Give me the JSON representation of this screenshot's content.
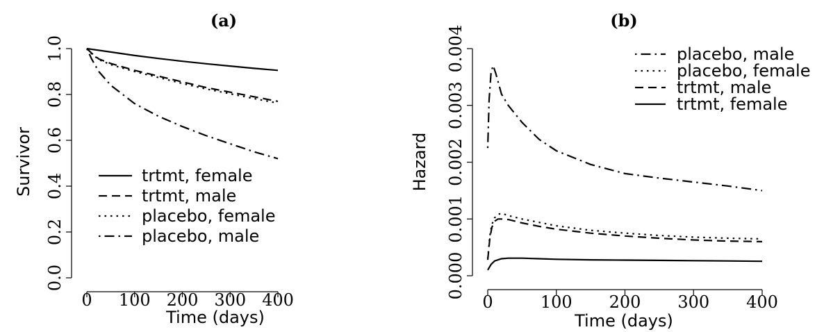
{
  "chart_data": [
    {
      "type": "line",
      "title": "(a)",
      "xlabel": "Time (days)",
      "ylabel": "Survivor",
      "xlim": [
        0,
        400
      ],
      "ylim": [
        0,
        1
      ],
      "xticks": [
        0,
        100,
        200,
        300,
        400
      ],
      "yticks": [
        0.0,
        0.2,
        0.4,
        0.6,
        0.8,
        1.0
      ],
      "xtick_labels": [
        "0",
        "100",
        "200",
        "300",
        "400"
      ],
      "ytick_labels": [
        "0.0",
        "0.2",
        "0.4",
        "0.6",
        "0.8",
        "1.0"
      ],
      "legend_position": "bottom-left",
      "grid": false,
      "series": [
        {
          "name": "trtmt, female",
          "style": "solid",
          "x": [
            0,
            50,
            100,
            150,
            200,
            250,
            300,
            350,
            400
          ],
          "y": [
            1.0,
            0.985,
            0.97,
            0.957,
            0.945,
            0.934,
            0.924,
            0.914,
            0.905
          ]
        },
        {
          "name": "trtmt, male",
          "style": "dashed",
          "x": [
            0,
            10,
            25,
            50,
            100,
            150,
            200,
            250,
            300,
            350,
            400
          ],
          "y": [
            1.0,
            0.98,
            0.955,
            0.935,
            0.905,
            0.88,
            0.855,
            0.83,
            0.81,
            0.79,
            0.77
          ]
        },
        {
          "name": "placebo, female",
          "style": "dotted",
          "x": [
            0,
            10,
            25,
            50,
            100,
            150,
            200,
            250,
            300,
            350,
            400
          ],
          "y": [
            1.0,
            0.978,
            0.952,
            0.93,
            0.9,
            0.874,
            0.848,
            0.824,
            0.803,
            0.782,
            0.762
          ]
        },
        {
          "name": "placebo, male",
          "style": "dashdot",
          "x": [
            0,
            10,
            25,
            50,
            100,
            150,
            200,
            250,
            300,
            350,
            400
          ],
          "y": [
            1.0,
            0.955,
            0.9,
            0.84,
            0.76,
            0.705,
            0.66,
            0.62,
            0.585,
            0.55,
            0.52
          ]
        }
      ]
    },
    {
      "type": "line",
      "title": "(b)",
      "xlabel": "Time (days)",
      "ylabel": "Hazard",
      "xlim": [
        0,
        400
      ],
      "ylim": [
        0,
        0.004
      ],
      "xticks": [
        0,
        100,
        200,
        300,
        400
      ],
      "yticks": [
        0.0,
        0.001,
        0.002,
        0.003,
        0.004
      ],
      "xtick_labels": [
        "0",
        "100",
        "200",
        "300",
        "400"
      ],
      "ytick_labels": [
        "0.000",
        "0.001",
        "0.002",
        "0.003",
        "0.004"
      ],
      "legend_position": "top-right",
      "grid": false,
      "series": [
        {
          "name": "placebo, male",
          "style": "dashdot",
          "x": [
            0,
            2,
            5,
            8,
            12,
            20,
            30,
            50,
            75,
            100,
            150,
            200,
            250,
            300,
            350,
            400
          ],
          "y": [
            0.00225,
            0.0031,
            0.0036,
            0.0037,
            0.00355,
            0.0032,
            0.003,
            0.0027,
            0.0024,
            0.0022,
            0.00196,
            0.0018,
            0.00172,
            0.00165,
            0.00158,
            0.0015
          ]
        },
        {
          "name": "placebo, female",
          "style": "dotted",
          "x": [
            0,
            3,
            6,
            10,
            15,
            20,
            30,
            50,
            75,
            100,
            150,
            200,
            250,
            300,
            350,
            400
          ],
          "y": [
            0.0003,
            0.0007,
            0.0009,
            0.00102,
            0.00108,
            0.0011,
            0.00106,
            0.001,
            0.00094,
            0.00088,
            0.0008,
            0.00075,
            0.00071,
            0.00068,
            0.00066,
            0.00065
          ]
        },
        {
          "name": "trtmt, male",
          "style": "dashed",
          "x": [
            0,
            3,
            6,
            10,
            15,
            20,
            30,
            50,
            75,
            100,
            150,
            200,
            250,
            300,
            350,
            400
          ],
          "y": [
            0.00028,
            0.00065,
            0.00085,
            0.00096,
            0.001,
            0.001,
            0.00099,
            0.00093,
            0.00087,
            0.00082,
            0.00075,
            0.0007,
            0.00066,
            0.00063,
            0.00061,
            0.0006
          ]
        },
        {
          "name": "trtmt, female",
          "style": "solid",
          "x": [
            0,
            5,
            10,
            20,
            30,
            50,
            75,
            100,
            150,
            200,
            250,
            300,
            350,
            400
          ],
          "y": [
            0.0001,
            0.0002,
            0.00026,
            0.0003,
            0.00031,
            0.00031,
            0.0003,
            0.00029,
            0.00028,
            0.000275,
            0.00027,
            0.000265,
            0.00026,
            0.000255
          ]
        }
      ]
    }
  ]
}
